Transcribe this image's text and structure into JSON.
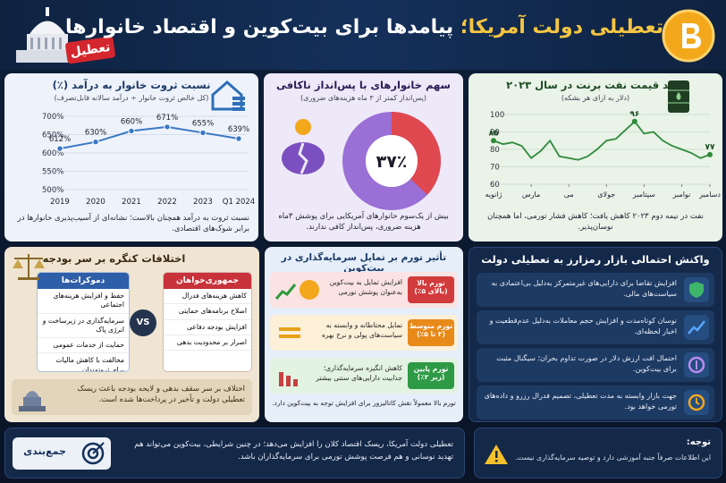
{
  "header": {
    "title_part1": "تعطیلی دولت آمریکا؛",
    "title_part2": "پیامدها برای بیت‌کوین و اقتصاد خانوارها",
    "badge": "تعطیل"
  },
  "wealth_chart": {
    "type": "line",
    "title": "نسبت ثروت خانوار به درآمد (٪)",
    "subtitle": "(کل خالص ثروت خانوار ÷ درآمد سالانه  قابل‌تصرف)",
    "categories": [
      "2019",
      "2020",
      "2021",
      "2022",
      "2023",
      "2024 Q1"
    ],
    "values": [
      612,
      630,
      660,
      671,
      655,
      639
    ],
    "value_labels": [
      "612%",
      "630%",
      "660%",
      "671%",
      "655%",
      "639%"
    ],
    "color": "#3a78c4",
    "ylim": [
      500,
      700
    ],
    "yticks": [
      {
        "value": 500,
        "label": "500%"
      },
      {
        "value": 550,
        "label": "550%"
      },
      {
        "value": 600,
        "label": "600%"
      },
      {
        "value": 650,
        "label": "650%"
      },
      {
        "value": 700,
        "label": "700%"
      }
    ],
    "grid": true,
    "note": "نسبت ثروت به درآمد همچنان بالاست؛ نشانه‌ای از آسیب‌پذیری خانوارها در برابر شوک‌های اقتصادی."
  },
  "savings_chart": {
    "type": "donut",
    "title": "سهم خانوارهای با پس‌انداز ناکافی",
    "subtitle": "(پس‌انداز کمتر از ۳ ماه هزینه‌های ضروری)",
    "values": [
      37
    ],
    "value_labels": [
      "۳۷٪"
    ],
    "color": "#e0484f",
    "rest_color": "#9a6fd6",
    "note": "بیش از یک‌سوم خانوارهای آمریکایی برای پوشش ۳ماه هزینه ضروری، پس‌انداز کافی ندارند."
  },
  "oil_chart": {
    "type": "line",
    "title": "روند قیمت نفت برنت در سال ۲۰۲۳",
    "subtitle": "(دلار به ازای هر بشکه)",
    "x": [
      1,
      1.5,
      2,
      2.5,
      3,
      3.5,
      4,
      4.5,
      5,
      5.5,
      6,
      6.5,
      7,
      7.5,
      8,
      8.5,
      9,
      9.5,
      10,
      10.5,
      11,
      11.5,
      12,
      12.5
    ],
    "values": [
      85,
      83,
      84,
      82,
      75,
      79,
      85,
      76,
      75,
      74,
      76,
      80,
      85,
      86,
      91,
      96,
      89,
      90,
      85,
      82,
      80,
      78,
      75,
      77
    ],
    "color": "#2f8a3a",
    "xlim": [
      1,
      12.5
    ],
    "xticks": [
      {
        "value": 1,
        "label": "ژانویه"
      },
      {
        "value": 3,
        "label": "مارس"
      },
      {
        "value": 5,
        "label": "می"
      },
      {
        "value": 7,
        "label": "جولای"
      },
      {
        "value": 9,
        "label": "سپتامبر"
      },
      {
        "value": 11,
        "label": "نوامبر"
      },
      {
        "value": 12.5,
        "label": "دسامبر"
      }
    ],
    "ylim": [
      60,
      100
    ],
    "yticks": [
      60,
      70,
      80,
      90,
      100
    ],
    "grid": true,
    "annotations": [
      {
        "x": 1,
        "value": 85,
        "label": "۸۵"
      },
      {
        "x": 8.5,
        "value": 96,
        "label": "۹۶"
      },
      {
        "x": 12.5,
        "value": 77,
        "label": "۷۷"
      }
    ],
    "note": "نفت در نیمه دوم ۲۰۲۳ کاهش یافت؛ کاهش فشار تورمی، اما همچنان نوسان‌پذیر."
  },
  "congress": {
    "title": "اختلافات کنگره بر سر بودجه",
    "republicans": {
      "title": "جمهوری‌خواهان",
      "items": [
        "کاهش هزینه‌های فدرال",
        "اصلاح برنامه‌های حمایتی",
        "افزایش بودجه دفاعی",
        "اصرار بر محدودیت بدهی"
      ]
    },
    "democrats": {
      "title": "دموکرات‌ها",
      "items": [
        "حفظ و افزایش هزینه‌های اجتماعی",
        "سرمایه‌گذاری در زیرساخت و انرژی پاک",
        "حمایت از خدمات عمومی",
        "مخالفت با کاهش مالیات برای ثروتمندان"
      ]
    },
    "vs": "VS",
    "footer": "اختلاف بر سر سقف بدهی و لایحه بودجه باعث ریسک تعطیلی دولت و تأخیر در پرداخت‌ها شده است."
  },
  "inflation": {
    "title": "تأثیر تورم بر تمایل سرمایه‌گذاری در بیت‌کوین",
    "rows": [
      {
        "level": "تورم بالا (بالای ۵٪)",
        "text": "افزایش تمایل به بیت‌کوین به‌عنوان پوشش تورمی"
      },
      {
        "level": "تورم متوسط (۲ تا ۵٪)",
        "text": "تمایل محتاطانه و وابسته به سیاست‌های پولی و نرخ بهره"
      },
      {
        "level": "تورم پایین (زیر ۲٪)",
        "text": "کاهش انگیزه سرمایه‌گذاری؛ جذابیت دارایی‌های سنتی بیشتر"
      }
    ],
    "footnote": "تورم بالا معمولاً نقش کاتالیزور برای افزایش توجه به بیت‌کوین دارد."
  },
  "market": {
    "title": "واکنش احتمالی بازار رمزارز به تعطیلی دولت",
    "items": [
      "افزایش تقاضا برای دارایی‌های غیرمتمرکز به‌دلیل بی‌اعتمادی به سیاست‌های مالی.",
      "نوسان کوتاه‌مدت و افزایش حجم معاملات به‌دلیل عدم‌قطعیت و اخبار لحظه‌ای.",
      "احتمال افت ارزش دلار در صورت تداوم بحران؛ سیگنال مثبت برای بیت‌کوین.",
      "جهت بازار وابسته به مدت تعطیلی، تصمیم فدرال رزرو و داده‌های تورمی خواهد بود."
    ]
  },
  "summary": {
    "title": "جمع‌بندی",
    "text": "تعطیلی دولت آمریکا، ریسک اقتصاد کلان را افزایش می‌دهد؛ در چنین شرایطی، بیت‌کوین می‌تواند هم تهدید نوسانی و هم فرصت پوشش تورمی برای سرمایه‌گذاران باشد."
  },
  "notice": {
    "title": "توجه:",
    "text": "این اطلاعات صرفاً جنبه آموزشی دارد و توصیه سرمایه‌گذاری نیست."
  }
}
